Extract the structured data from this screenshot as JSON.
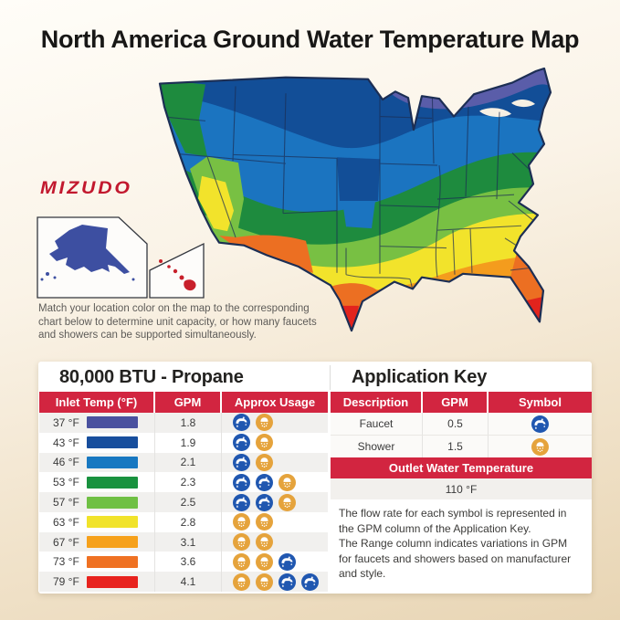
{
  "title": "North America Ground Water Temperature Map",
  "brand": "MIZUDO",
  "map": {
    "note_lines": [
      "Match your location color on the map to the corresponding",
      "chart below to determine unit capacity, or how many faucets",
      "and showers can be supported simultaneously."
    ],
    "zone_colors": {
      "purple": "#5a5da9",
      "darkblue": "#124e97",
      "blue": "#1b74c0",
      "green": "#1e8b3e",
      "lightgreen": "#78c043",
      "yellow": "#f2e32b",
      "orange": "#f49c1d",
      "deeporange": "#ec6f22",
      "red": "#e2231d",
      "alaska": "#3d4fa1",
      "hawaii": "#c8202b",
      "lake": "#f7f0e3"
    },
    "outline_color": "#1c2e54"
  },
  "btu_table": {
    "title": "80,000 BTU - Propane",
    "columns": [
      "Inlet Temp (°F)",
      "GPM",
      "Approx Usage"
    ],
    "rows": [
      {
        "temp": "37 °F",
        "color": "#4a519f",
        "gpm": "1.8",
        "usage": [
          "faucet",
          "shower"
        ]
      },
      {
        "temp": "43 °F",
        "color": "#174e9d",
        "gpm": "1.9",
        "usage": [
          "faucet",
          "shower"
        ]
      },
      {
        "temp": "46 °F",
        "color": "#1878c1",
        "gpm": "2.1",
        "usage": [
          "faucet",
          "shower"
        ]
      },
      {
        "temp": "53 °F",
        "color": "#19923f",
        "gpm": "2.3",
        "usage": [
          "faucet",
          "faucet",
          "shower"
        ]
      },
      {
        "temp": "57 °F",
        "color": "#6fc044",
        "gpm": "2.5",
        "usage": [
          "faucet",
          "faucet",
          "shower"
        ]
      },
      {
        "temp": "63 °F",
        "color": "#f1e32a",
        "gpm": "2.8",
        "usage": [
          "shower",
          "shower"
        ]
      },
      {
        "temp": "67 °F",
        "color": "#f6a11b",
        "gpm": "3.1",
        "usage": [
          "shower",
          "shower"
        ]
      },
      {
        "temp": "73 °F",
        "color": "#ef7122",
        "gpm": "3.6",
        "usage": [
          "shower",
          "shower",
          "faucet"
        ]
      },
      {
        "temp": "79 °F",
        "color": "#e8231e",
        "gpm": "4.1",
        "usage": [
          "shower",
          "shower",
          "faucet",
          "faucet"
        ]
      }
    ]
  },
  "application_key": {
    "title": "Application Key",
    "columns": [
      "Description",
      "GPM",
      "Symbol"
    ],
    "rows": [
      {
        "description": "Faucet",
        "gpm": "0.5",
        "symbol": "faucet"
      },
      {
        "description": "Shower",
        "gpm": "1.5",
        "symbol": "shower"
      }
    ],
    "outlet_banner": "Outlet Water Temperature",
    "outlet_value": "110 °F",
    "note_lines": [
      "The flow rate for each symbol is represented in",
      "the GPM column of the Application Key.",
      "The Range column indicates variations in GPM",
      "for faucets and showers based on manufacturer",
      "and style."
    ]
  },
  "colors": {
    "accent_red": "#d22540",
    "faucet_blue": "#2057b0",
    "shower_orange": "#e5a33c"
  }
}
